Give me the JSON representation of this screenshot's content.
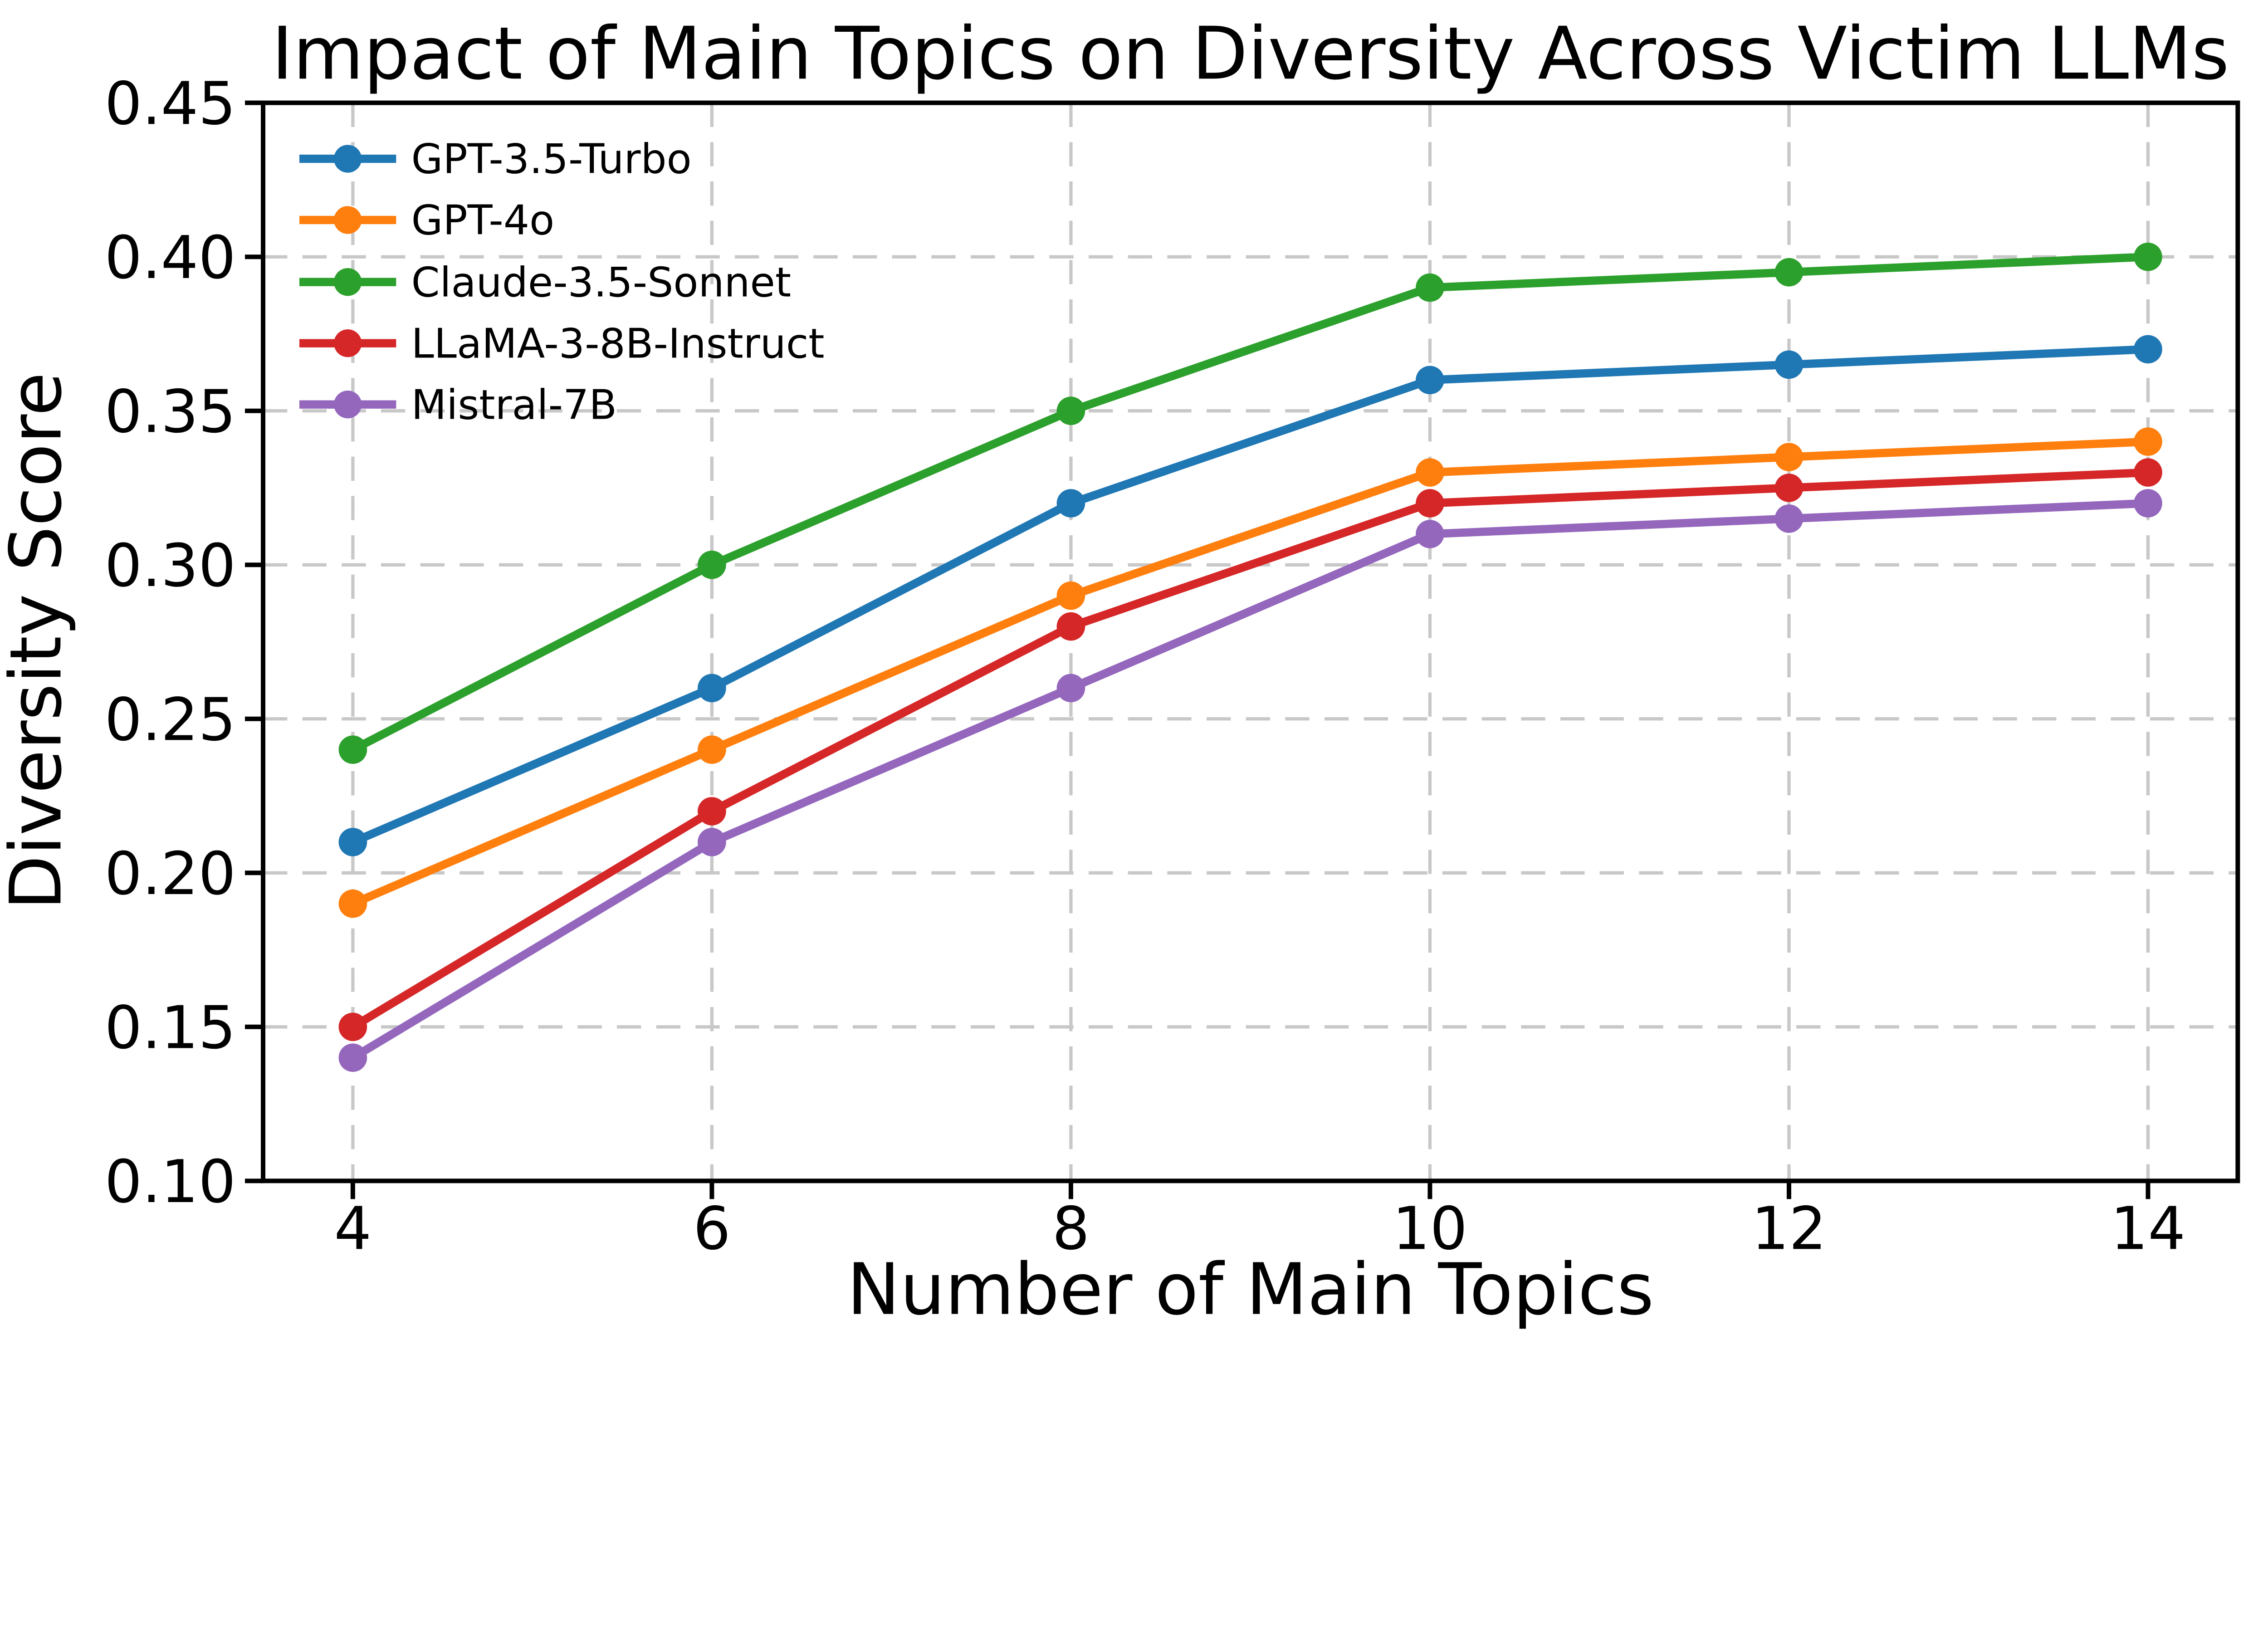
{
  "chart_data": {
    "type": "line",
    "title": "Impact of Main Topics on Diversity Across Victim LLMs",
    "xlabel": "Number of Main Topics",
    "ylabel": "Diversity Score",
    "x": [
      4,
      6,
      8,
      10,
      12,
      14
    ],
    "series": [
      {
        "name": "GPT-3.5-Turbo",
        "color": "#1f77b4",
        "values": [
          0.21,
          0.26,
          0.32,
          0.36,
          0.365,
          0.37
        ]
      },
      {
        "name": "GPT-4o",
        "color": "#ff7f0e",
        "values": [
          0.19,
          0.24,
          0.29,
          0.33,
          0.335,
          0.34
        ]
      },
      {
        "name": "Claude-3.5-Sonnet",
        "color": "#2ca02c",
        "values": [
          0.24,
          0.3,
          0.35,
          0.39,
          0.395,
          0.4
        ]
      },
      {
        "name": "LLaMA-3-8B-Instruct",
        "color": "#d62728",
        "values": [
          0.15,
          0.22,
          0.28,
          0.32,
          0.325,
          0.33
        ]
      },
      {
        "name": "Mistral-7B",
        "color": "#9467bd",
        "values": [
          0.14,
          0.21,
          0.26,
          0.31,
          0.315,
          0.32
        ]
      }
    ],
    "xlim": [
      3.5,
      14.5
    ],
    "ylim": [
      0.1,
      0.45
    ],
    "x_ticks": [
      4,
      6,
      8,
      10,
      12,
      14
    ],
    "x_tick_labels": [
      "4",
      "6",
      "8",
      "10",
      "12",
      "14"
    ],
    "y_ticks": [
      0.1,
      0.15,
      0.2,
      0.25,
      0.3,
      0.35,
      0.4,
      0.45
    ],
    "y_tick_labels": [
      "0.10",
      "0.15",
      "0.20",
      "0.25",
      "0.30",
      "0.35",
      "0.40",
      "0.45"
    ],
    "grid": true,
    "grid_style": "dashed",
    "legend_position": "upper left",
    "colors": {
      "grid": "#c8c8c8",
      "axis": "#000000",
      "background": "#ffffff"
    }
  }
}
